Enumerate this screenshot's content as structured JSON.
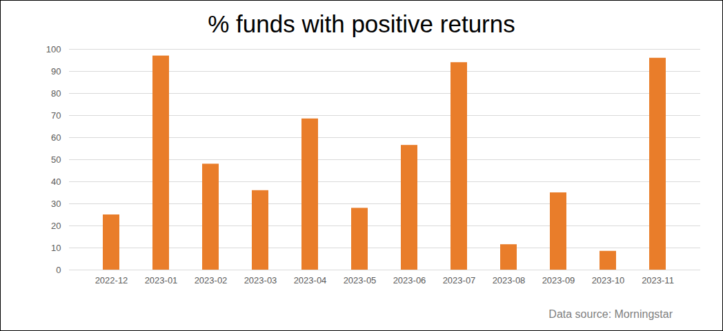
{
  "chart_data": {
    "type": "bar",
    "title": "% funds with positive returns",
    "caption": "Data source: Morningstar",
    "categories": [
      "2022-12",
      "2023-01",
      "2023-02",
      "2023-03",
      "2023-04",
      "2023-05",
      "2023-06",
      "2023-07",
      "2023-08",
      "2023-09",
      "2023-10",
      "2023-11"
    ],
    "values": [
      25,
      97,
      48,
      36,
      68.5,
      28,
      56.5,
      94,
      11.5,
      35,
      8.5,
      96
    ],
    "color": "#e97d2a",
    "ylim": [
      0,
      100
    ],
    "yticks": [
      0,
      10,
      20,
      30,
      40,
      50,
      60,
      70,
      80,
      90,
      100
    ],
    "grid": true
  }
}
